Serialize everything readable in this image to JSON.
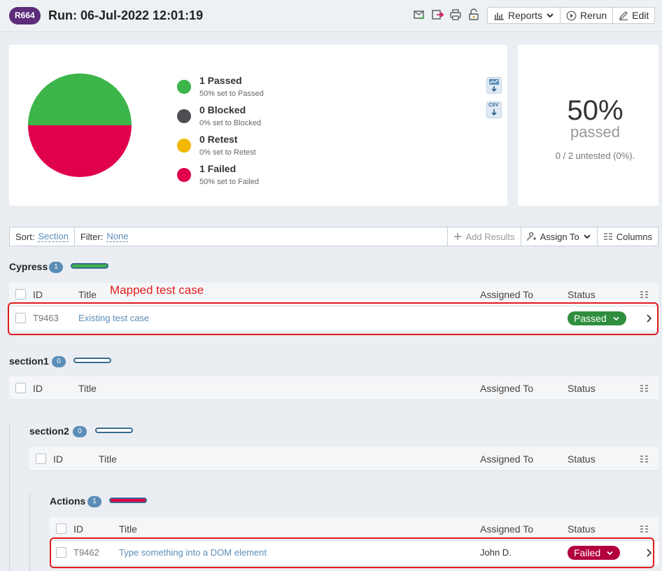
{
  "header": {
    "run_id": "R664",
    "title": "Run: 06-Jul-2022 12:01:19",
    "reports_label": "Reports",
    "rerun_label": "Rerun",
    "edit_label": "Edit"
  },
  "summary": {
    "legend": [
      {
        "label": "1 Passed",
        "sub": "50% set to Passed",
        "color": "#3cb54a"
      },
      {
        "label": "0 Blocked",
        "sub": "0% set to Blocked",
        "color": "#4d4f52"
      },
      {
        "label": "0 Retest",
        "sub": "0% set to Retest",
        "color": "#f2b800"
      },
      {
        "label": "1 Failed",
        "sub": "50% set to Failed",
        "color": "#e0004d"
      }
    ],
    "csv_label": "CSV",
    "percent": "50%",
    "percent_label": "passed",
    "untested": "0 / 2 untested (0%)."
  },
  "chart_data": {
    "type": "pie",
    "categories": [
      "Passed",
      "Blocked",
      "Retest",
      "Failed"
    ],
    "values": [
      50,
      0,
      0,
      50
    ],
    "colors": [
      "#3cb54a",
      "#4d4f52",
      "#f2b800",
      "#e0004d"
    ]
  },
  "toolbar": {
    "sort_label": "Sort:",
    "sort_value": "Section",
    "filter_label": "Filter:",
    "filter_value": "None",
    "add_results": "Add Results",
    "assign_to": "Assign To",
    "columns": "Columns"
  },
  "columns": {
    "id": "ID",
    "title": "Title",
    "assigned": "Assigned To",
    "status": "Status"
  },
  "annotation": "Mapped test case",
  "sections": {
    "cypress": {
      "name": "Cypress",
      "count": "1",
      "bar_color": "#3cb54a",
      "row": {
        "id": "T9463",
        "title": "Existing test case",
        "assigned": "",
        "status": "Passed",
        "status_color": "#2f8e3d"
      }
    },
    "section1": {
      "name": "section1",
      "count": "0"
    },
    "section2": {
      "name": "section2",
      "count": "0"
    },
    "actions": {
      "name": "Actions",
      "count": "1",
      "bar_color": "#e0004d",
      "row": {
        "id": "T9462",
        "title": "Type something into a DOM element",
        "assigned": "John D.",
        "status": "Failed",
        "status_color": "#b3003d"
      }
    }
  }
}
